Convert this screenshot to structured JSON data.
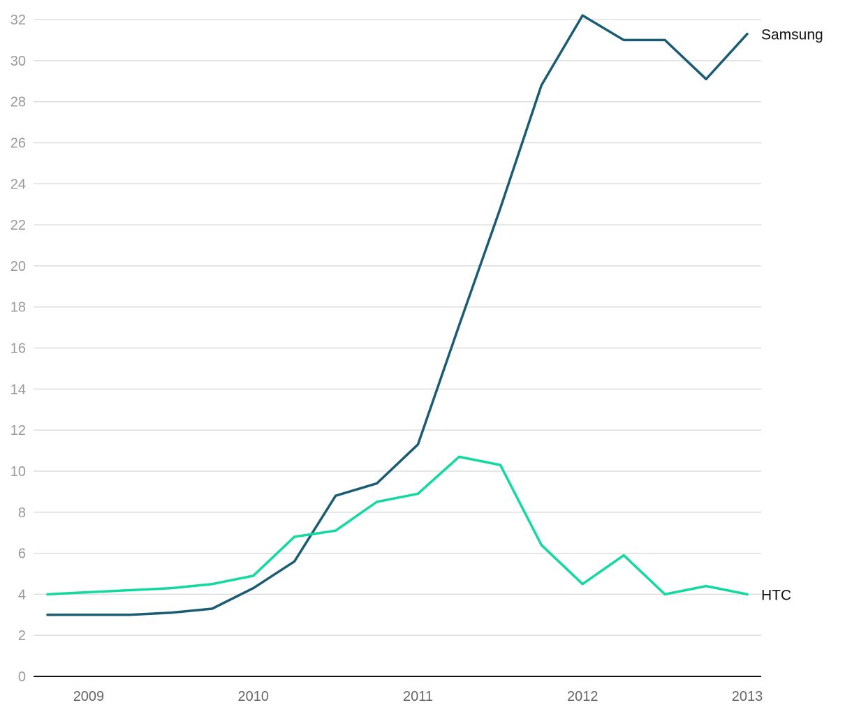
{
  "chart_data": {
    "type": "line",
    "title": "",
    "xlabel": "",
    "ylabel": "",
    "xlim": [
      2008.75,
      2013.0
    ],
    "ylim": [
      0,
      32
    ],
    "yticks": [
      0,
      2,
      4,
      6,
      8,
      10,
      12,
      14,
      16,
      18,
      20,
      22,
      24,
      26,
      28,
      30,
      32
    ],
    "xticks": [
      "2009",
      "2010",
      "2011",
      "2012",
      "2013"
    ],
    "grid": true,
    "legend": "direct labels at line ends (right)",
    "x": [
      2008.75,
      2009.0,
      2009.25,
      2009.5,
      2009.75,
      2010.0,
      2010.25,
      2010.5,
      2010.75,
      2011.0,
      2011.25,
      2011.5,
      2011.75,
      2012.0,
      2012.25,
      2012.5,
      2012.75,
      2013.0
    ],
    "series": [
      {
        "name": "Samsung",
        "color": "#1b5c73",
        "values": [
          3.0,
          3.0,
          3.0,
          3.1,
          3.3,
          4.3,
          5.6,
          8.8,
          9.4,
          11.3,
          17.1,
          22.8,
          28.8,
          32.2,
          31.0,
          31.0,
          29.1,
          31.3
        ]
      },
      {
        "name": "HTC",
        "color": "#12d9a0",
        "values": [
          4.0,
          4.1,
          4.2,
          4.3,
          4.5,
          4.9,
          6.8,
          7.1,
          8.5,
          8.9,
          10.7,
          10.3,
          6.4,
          4.5,
          5.9,
          4.0,
          4.4,
          4.0
        ]
      }
    ]
  }
}
